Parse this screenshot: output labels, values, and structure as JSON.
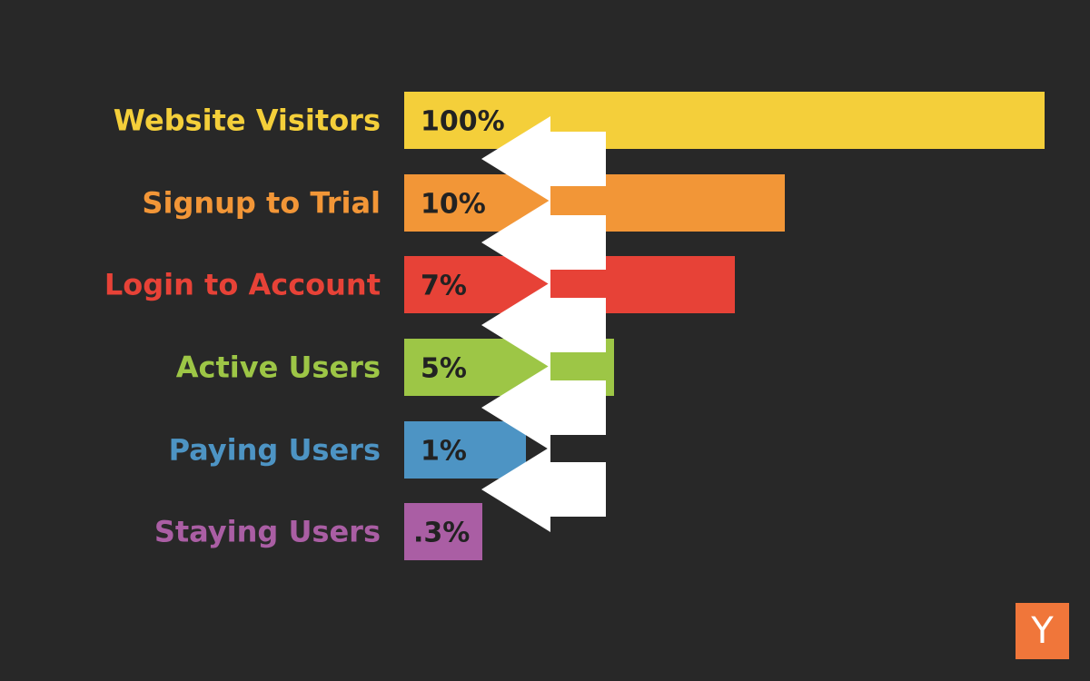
{
  "chart_data": {
    "type": "bar",
    "orientation": "horizontal",
    "categories": [
      "Website Visitors",
      "Signup to Trial",
      "Login to Account",
      "Active Users",
      "Paying Users",
      "Staying Users"
    ],
    "values": [
      100,
      10,
      7,
      5,
      1,
      0.3
    ],
    "value_labels": [
      "100%",
      "10%",
      "7%",
      "5%",
      "1%",
      ".3%"
    ],
    "colors": [
      "#F4CF3A",
      "#F29637",
      "#E74237",
      "#9DC646",
      "#4D94C4",
      "#AA5EA4"
    ],
    "grid": false,
    "legend": "none",
    "annotations": {
      "arrows": "left-pointing white arrows between consecutive bars"
    }
  },
  "logo": {
    "text": "Y",
    "color": "#F0763A"
  }
}
